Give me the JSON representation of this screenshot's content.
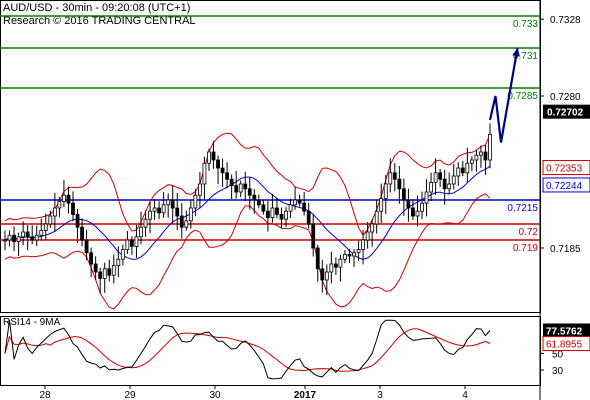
{
  "header": {
    "symbol_line": "AUD/USD - 30min - 09:20:08 (UTC+1)",
    "research_line": "Research © 2016 TRADING CENTRAL"
  },
  "colors": {
    "background": "#ffffff",
    "candle": "#000000",
    "bollinger": "#cc0000",
    "moving_average": "#0000cc",
    "forecast_arrow": "#000080",
    "target_lines": "#008000",
    "pivot_line": "#0000cc",
    "support_lines": "#cc0000",
    "rsi": "#000000",
    "rsi_ma": "#cc0000",
    "grid_text": "#000000",
    "current_price_badge_bg": "#000000",
    "current_price_badge_text": "#ffffff"
  },
  "chart_data": [
    {
      "type": "candlestick",
      "pane": "price",
      "title": "AUD/USD - 30min",
      "y_ticks": [
        "0.7328",
        "0.7280",
        "0.7185"
      ],
      "ylim": [
        0.7145,
        0.734
      ],
      "x_ticks": [
        "28",
        "29",
        "30",
        "2017",
        "3",
        "4"
      ],
      "current_price": "0.72702",
      "price_badges": [
        {
          "label": "0.72353",
          "value": 0.72353,
          "color": "#cc0000"
        },
        {
          "label": "0.72244",
          "value": 0.72244,
          "color": "#0000cc"
        }
      ],
      "horizontal_levels": [
        {
          "label": "0.733",
          "value": 0.733,
          "color": "#008000"
        },
        {
          "label": "0.731",
          "value": 0.731,
          "color": "#008000"
        },
        {
          "label": "0.7285",
          "value": 0.7285,
          "color": "#008000"
        },
        {
          "label": "0.7215",
          "value": 0.7215,
          "color": "#0000cc"
        },
        {
          "label": "0.72",
          "value": 0.72,
          "color": "#cc0000"
        },
        {
          "label": "0.719",
          "value": 0.719,
          "color": "#cc0000"
        }
      ],
      "close_series": [
        0.719,
        0.7193,
        0.7189,
        0.7192,
        0.7195,
        0.7192,
        0.719,
        0.7193,
        0.7196,
        0.72,
        0.7205,
        0.721,
        0.7214,
        0.7218,
        0.7213,
        0.7206,
        0.7198,
        0.719,
        0.7182,
        0.7175,
        0.717,
        0.7166,
        0.7172,
        0.7168,
        0.7174,
        0.7178,
        0.7184,
        0.719,
        0.7186,
        0.7192,
        0.7198,
        0.7203,
        0.7208,
        0.721,
        0.7207,
        0.7212,
        0.7215,
        0.721,
        0.7205,
        0.7198,
        0.7202,
        0.721,
        0.7218,
        0.7225,
        0.7238,
        0.7245,
        0.724,
        0.7235,
        0.7232,
        0.7228,
        0.7224,
        0.722,
        0.7225,
        0.7222,
        0.7218,
        0.7215,
        0.7212,
        0.7208,
        0.7204,
        0.721,
        0.7206,
        0.7203,
        0.7208,
        0.7212,
        0.7215,
        0.7213,
        0.7208,
        0.72,
        0.7185,
        0.7172,
        0.7165,
        0.717,
        0.7175,
        0.7173,
        0.7178,
        0.7181,
        0.718,
        0.7182,
        0.7184,
        0.719,
        0.7195,
        0.72,
        0.7208,
        0.7216,
        0.7225,
        0.7232,
        0.7228,
        0.7222,
        0.7215,
        0.721,
        0.7205,
        0.7208,
        0.7213,
        0.722,
        0.7226,
        0.7232,
        0.7228,
        0.7222,
        0.7225,
        0.723,
        0.7235,
        0.7232,
        0.7238,
        0.724,
        0.7243,
        0.7245,
        0.724,
        0.7256
      ],
      "forecast_path": [
        {
          "step": 0,
          "value": 0.7265
        },
        {
          "step": 1,
          "value": 0.728
        },
        {
          "step": 2,
          "value": 0.7251
        },
        {
          "step": 5,
          "value": 0.731
        }
      ]
    },
    {
      "type": "line",
      "pane": "rsi",
      "title": "RSI14 - 9MA",
      "y_ticks": [
        "50",
        "30"
      ],
      "ylim": [
        12,
        95
      ],
      "current_value": "77.5762",
      "ma_value": "61.8955",
      "series": [
        {
          "name": "RSI14",
          "color": "#000000"
        },
        {
          "name": "9MA",
          "color": "#cc0000"
        }
      ]
    }
  ]
}
